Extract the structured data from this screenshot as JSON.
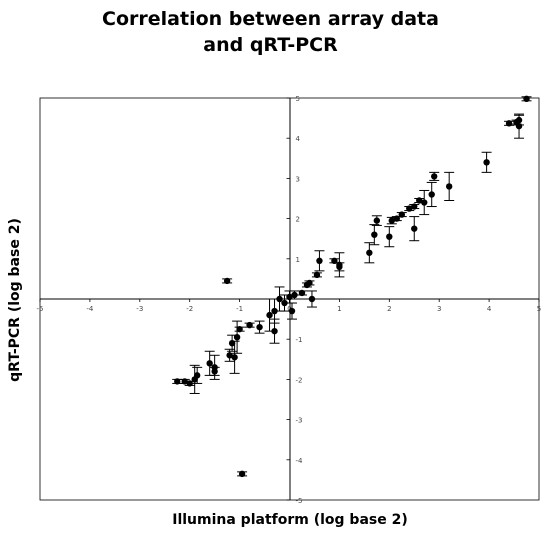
{
  "chart_data": {
    "type": "scatter",
    "title": [
      "Correlation between array data",
      "and qRT-PCR"
    ],
    "xlabel": "Illumina platform (log base 2)",
    "ylabel": "qRT-PCR (log base 2)",
    "xlim": [
      -5,
      5
    ],
    "ylim": [
      -5,
      5
    ],
    "x_ticks": [
      -5,
      -4,
      -3,
      -2,
      -1,
      0,
      1,
      2,
      3,
      4,
      5
    ],
    "y_ticks": [
      -5,
      -4,
      -3,
      -2,
      -1,
      1,
      2,
      3,
      4,
      5
    ],
    "grid": false,
    "marker_color": "#000000",
    "series": [
      {
        "points": [
          {
            "x": 4.75,
            "y": 4.98,
            "err": 0.05
          },
          {
            "x": 4.6,
            "y": 4.45,
            "err": 0.12
          },
          {
            "x": 4.55,
            "y": 4.4,
            "err": 0.05
          },
          {
            "x": 4.4,
            "y": 4.37,
            "err": 0.05
          },
          {
            "x": 4.6,
            "y": 4.3,
            "err": 0.3
          },
          {
            "x": 3.95,
            "y": 3.4,
            "err": 0.25
          },
          {
            "x": 3.2,
            "y": 2.8,
            "err": 0.35
          },
          {
            "x": 2.9,
            "y": 3.05,
            "err": 0.1
          },
          {
            "x": 2.85,
            "y": 2.6,
            "err": 0.3
          },
          {
            "x": 2.7,
            "y": 2.4,
            "err": 0.3
          },
          {
            "x": 2.6,
            "y": 2.45,
            "err": 0.05
          },
          {
            "x": 2.5,
            "y": 2.3,
            "err": 0.05
          },
          {
            "x": 2.4,
            "y": 2.25,
            "err": 0.05
          },
          {
            "x": 2.25,
            "y": 2.1,
            "err": 0.05
          },
          {
            "x": 2.15,
            "y": 2.0,
            "err": 0.05
          },
          {
            "x": 2.05,
            "y": 1.95,
            "err": 0.08
          },
          {
            "x": 2.5,
            "y": 1.75,
            "err": 0.3
          },
          {
            "x": 2.0,
            "y": 1.55,
            "err": 0.25
          },
          {
            "x": 1.75,
            "y": 1.95,
            "err": 0.12
          },
          {
            "x": 1.7,
            "y": 1.6,
            "err": 0.25
          },
          {
            "x": 1.6,
            "y": 1.15,
            "err": 0.25
          },
          {
            "x": 1.0,
            "y": 0.85,
            "err": 0.3
          },
          {
            "x": 0.9,
            "y": 0.95,
            "err": 0.05
          },
          {
            "x": 1.0,
            "y": 0.8,
            "err": 0.1
          },
          {
            "x": 0.6,
            "y": 0.95,
            "err": 0.25
          },
          {
            "x": 0.55,
            "y": 0.6,
            "err": 0.05
          },
          {
            "x": 0.4,
            "y": 0.4,
            "err": 0.05
          },
          {
            "x": 0.35,
            "y": 0.35,
            "err": 0.05
          },
          {
            "x": 0.25,
            "y": 0.15,
            "err": 0.05
          },
          {
            "x": 0.45,
            "y": 0.0,
            "err": 0.2
          },
          {
            "x": 0.1,
            "y": 0.1,
            "err": 0.1
          },
          {
            "x": 0.0,
            "y": 0.05,
            "err": 0.15
          },
          {
            "x": -0.2,
            "y": 0.0,
            "err": 0.3
          },
          {
            "x": -0.1,
            "y": -0.1,
            "err": 0.2
          },
          {
            "x": 0.05,
            "y": -0.3,
            "err": 0.2
          },
          {
            "x": -0.3,
            "y": -0.3,
            "err": 0.3
          },
          {
            "x": -0.4,
            "y": -0.4,
            "err": 0.4
          },
          {
            "x": -0.6,
            "y": -0.7,
            "err": 0.15
          },
          {
            "x": -0.3,
            "y": -0.8,
            "err": 0.3
          },
          {
            "x": -0.8,
            "y": -0.65,
            "err": 0.05
          },
          {
            "x": -1.0,
            "y": -0.75,
            "err": 0.05
          },
          {
            "x": -1.05,
            "y": -0.95,
            "err": 0.4
          },
          {
            "x": -1.15,
            "y": -1.1,
            "err": 0.2
          },
          {
            "x": -1.1,
            "y": -1.45,
            "err": 0.4
          },
          {
            "x": -1.2,
            "y": -1.4,
            "err": 0.15
          },
          {
            "x": -1.5,
            "y": -1.7,
            "err": 0.3
          },
          {
            "x": -1.5,
            "y": -1.8,
            "err": 0.1
          },
          {
            "x": -1.6,
            "y": -1.6,
            "err": 0.3
          },
          {
            "x": -1.85,
            "y": -1.9,
            "err": 0.2
          },
          {
            "x": -1.9,
            "y": -2.0,
            "err": 0.35
          },
          {
            "x": -2.0,
            "y": -2.1,
            "err": 0.05
          },
          {
            "x": -2.1,
            "y": -2.05,
            "err": 0.05
          },
          {
            "x": -2.25,
            "y": -2.05,
            "err": 0.05
          },
          {
            "x": -1.25,
            "y": 0.45,
            "err": 0.05
          },
          {
            "x": -0.95,
            "y": -4.35,
            "err": 0.05
          }
        ]
      }
    ]
  }
}
